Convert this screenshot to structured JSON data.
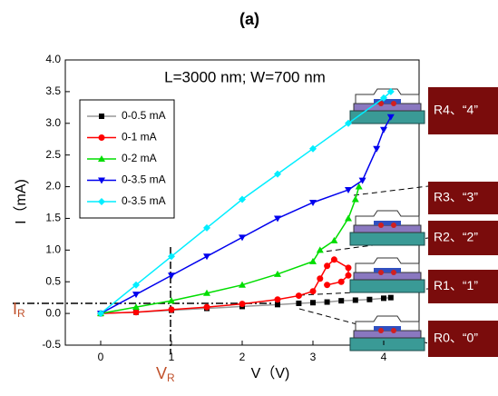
{
  "chart_data": {
    "type": "line",
    "title": "(a)",
    "annotation": "L=3000 nm; W=700 nm",
    "x_label": "V（V)",
    "y_label": "I（mA)",
    "markers": [
      {
        "text": "I",
        "sub": "R"
      },
      {
        "text": "V",
        "sub": "R"
      }
    ],
    "states": [
      "R4、“4”",
      "R3、“3”",
      "R2、“2”",
      "R1、“1”",
      "R0、“0”"
    ],
    "xlim": [
      -0.5,
      4.5
    ],
    "ylim": [
      -0.5,
      4.0
    ],
    "xticks": [
      0,
      1,
      2,
      3,
      4
    ],
    "yticks": [
      {
        "value": -0.5,
        "label": "-0.5"
      },
      {
        "value": 0,
        "label": "0.0"
      },
      {
        "value": 0.5,
        "label": "0.5"
      },
      {
        "value": 1,
        "label": "1.0"
      },
      {
        "value": 1.5,
        "label": "1.5"
      },
      {
        "value": 2,
        "label": "2.0"
      },
      {
        "value": 2.5,
        "label": "2.5"
      },
      {
        "value": 3,
        "label": "3.0"
      },
      {
        "value": 3.5,
        "label": "3.5"
      },
      {
        "value": 4,
        "label": "4.0"
      }
    ],
    "series": [
      {
        "name": "0-0.5 mA",
        "color": "#000000",
        "line_color": "#999999",
        "marker": "square",
        "x": [
          0,
          0.5,
          1,
          1.5,
          2,
          2.5,
          2.8,
          3.0,
          3.2,
          3.4,
          3.6,
          3.8,
          4.0,
          4.1
        ],
        "values": [
          0,
          0.02,
          0.05,
          0.08,
          0.11,
          0.14,
          0.16,
          0.17,
          0.18,
          0.2,
          0.21,
          0.22,
          0.24,
          0.25
        ]
      },
      {
        "name": "0-1 mA",
        "color": "#ff0000",
        "line_color": "#ff0000",
        "marker": "circle",
        "x": [
          0,
          0.5,
          1,
          1.5,
          2,
          2.5,
          2.8,
          3.0,
          3.1,
          3.2,
          3.3,
          3.5,
          3.5,
          3.4,
          3.2
        ],
        "values": [
          0,
          0.02,
          0.06,
          0.1,
          0.15,
          0.22,
          0.28,
          0.35,
          0.55,
          0.75,
          0.85,
          0.72,
          0.6,
          0.5,
          0.45
        ]
      },
      {
        "name": "0-2 mA",
        "color": "#00dd00",
        "line_color": "#00dd00",
        "marker": "triangle",
        "x": [
          0,
          0.5,
          1,
          1.5,
          2,
          2.5,
          3.0,
          3.1,
          3.3,
          3.5,
          3.6,
          3.65
        ],
        "values": [
          0,
          0.1,
          0.2,
          0.32,
          0.45,
          0.62,
          0.82,
          1.0,
          1.15,
          1.5,
          1.8,
          2.0
        ]
      },
      {
        "name": "0-3.5 mA",
        "color": "#0000ee",
        "line_color": "#0000ee",
        "marker": "triangle-down",
        "x": [
          0,
          0.5,
          1,
          1.5,
          2,
          2.5,
          3.0,
          3.5,
          3.7,
          3.9,
          4.0,
          4.1
        ],
        "values": [
          0,
          0.3,
          0.6,
          0.9,
          1.2,
          1.5,
          1.75,
          1.95,
          2.1,
          2.6,
          2.9,
          3.1
        ]
      },
      {
        "name": "0-3.5 mA",
        "color": "#00eeff",
        "line_color": "#00eeff",
        "marker": "diamond",
        "x": [
          0,
          0.5,
          1,
          1.5,
          2,
          2.5,
          3.0,
          3.5,
          4.0,
          4.1
        ],
        "values": [
          0,
          0.45,
          0.9,
          1.35,
          1.8,
          2.2,
          2.6,
          3.0,
          3.4,
          3.5
        ]
      }
    ]
  }
}
